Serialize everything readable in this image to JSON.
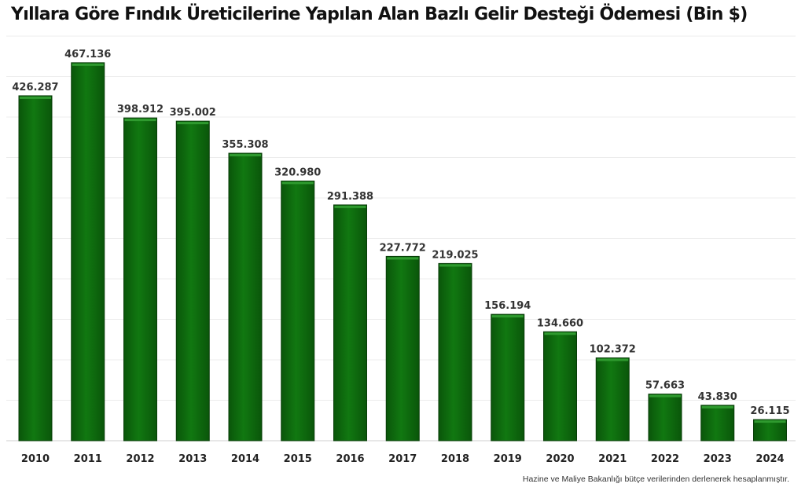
{
  "chart_data": {
    "type": "bar",
    "title": "Yıllara Göre Fındık Üreticilerine Yapılan Alan Bazlı Gelir Desteği Ödemesi (Bin $)",
    "categories": [
      "2010",
      "2011",
      "2012",
      "2013",
      "2014",
      "2015",
      "2016",
      "2017",
      "2018",
      "2019",
      "2020",
      "2021",
      "2022",
      "2023",
      "2024"
    ],
    "values": [
      426287,
      467136,
      398912,
      395002,
      355308,
      320980,
      291388,
      227772,
      219025,
      156194,
      134660,
      102372,
      57663,
      43830,
      26115
    ],
    "value_labels": [
      "426.287",
      "467.136",
      "398.912",
      "395.002",
      "355.308",
      "320.980",
      "291.388",
      "227.772",
      "219.025",
      "156.194",
      "134.660",
      "102.372",
      "57.663",
      "43.830",
      "26.115"
    ],
    "xlabel": "",
    "ylabel": "",
    "ylim": [
      0,
      500000
    ],
    "grid": true,
    "legend": "none",
    "bar_color": "#0e6b0e",
    "bar_edge_color": "#083d08"
  },
  "source_note": "Hazine ve Maliye Bakanlığı bütçe verilerinden derlenerek hesaplanmıştır."
}
